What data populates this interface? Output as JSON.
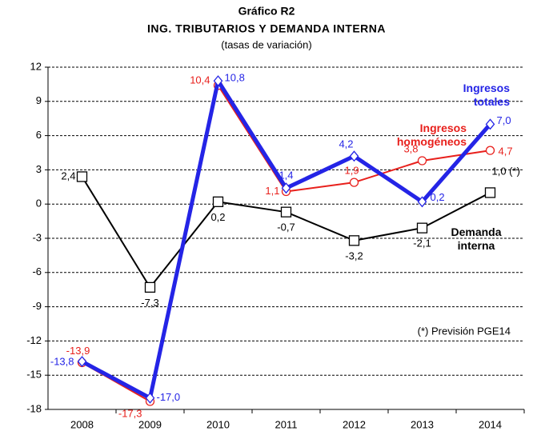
{
  "chart_data": {
    "type": "line",
    "title": "Gráfico R2",
    "subtitle": "ING. TRIBUTARIOS Y DEMANDA INTERNA",
    "unit_note": "(tasas de variación)",
    "categories": [
      "2008",
      "2009",
      "2010",
      "2011",
      "2012",
      "2013",
      "2014"
    ],
    "series": [
      {
        "name": "Demanda interna",
        "color": "#000000",
        "marker": "square",
        "values": [
          2.4,
          -7.3,
          0.2,
          -0.7,
          -3.2,
          -2.1,
          1.0
        ],
        "value_labels": [
          "2,4",
          "-7,3",
          "0,2",
          "-0,7",
          "-3,2",
          "-2,1",
          "1,0 (*)"
        ]
      },
      {
        "name": "Ingresos homogéneos",
        "color": "#e8201c",
        "marker": "circle",
        "values": [
          -13.9,
          -17.3,
          10.4,
          1.1,
          1.9,
          3.8,
          4.7
        ],
        "value_labels": [
          "-13,9",
          "-17,3",
          "10,4",
          "1,1",
          "1,9",
          "3,8",
          "4,7"
        ]
      },
      {
        "name": "Ingresos totales",
        "color": "#2424e6",
        "marker": "diamond",
        "values": [
          -13.8,
          -17.0,
          10.8,
          1.4,
          4.2,
          0.2,
          7.0
        ],
        "value_labels": [
          "-13,8",
          "-17,0",
          "10,8",
          "1,4",
          "4,2",
          "0,2",
          "7,0"
        ]
      }
    ],
    "ylim": [
      -18,
      12
    ],
    "yticks": [
      -18,
      -15,
      -12,
      -9,
      -6,
      -3,
      0,
      3,
      6,
      9,
      12
    ],
    "grid": true,
    "annotation": "(*) Previsión PGE14"
  }
}
